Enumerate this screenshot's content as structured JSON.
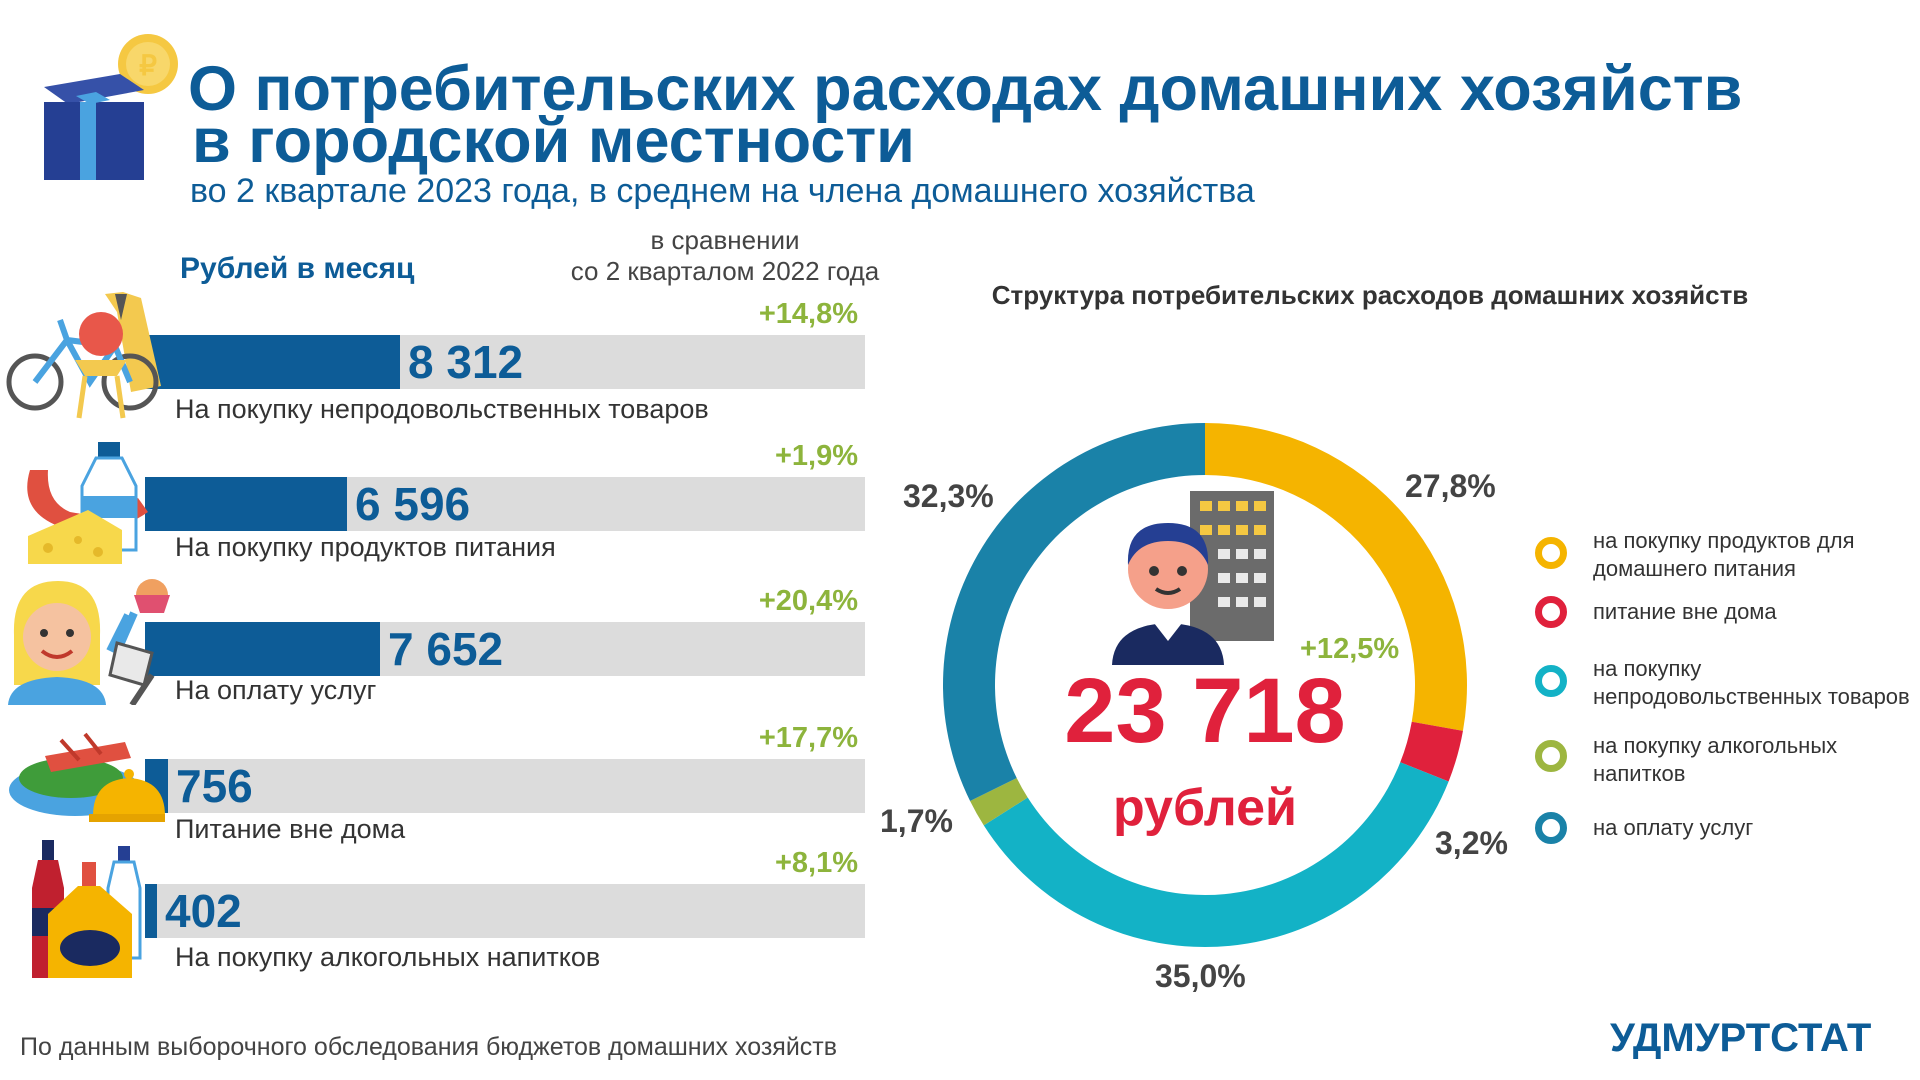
{
  "header": {
    "title_line1": "О потребительских расходах домашних хозяйств",
    "title_line2": "в городской местности",
    "subtitle": "во 2 квартале 2023 года, в среднем на члена домашнего хозяйства",
    "unit_label": "Рублей в месяц",
    "comparison_label_line1": "в сравнении",
    "comparison_label_line2": "со 2 кварталом 2022 года"
  },
  "chart_data": [
    {
      "type": "bar",
      "orientation": "horizontal",
      "categories": [
        "На покупку непродовольственных товаров",
        "На покупку продуктов питания",
        "На оплату услуг",
        "Питание вне дома",
        "На покупку алкогольных напитков"
      ],
      "values": [
        8312,
        6596,
        7652,
        756,
        402
      ],
      "value_labels": [
        "8 312",
        "6 596",
        "7 652",
        "756",
        "402"
      ],
      "changes": [
        "+14,8%",
        "+1,9%",
        "+20,4%",
        "+17,7%",
        "+8,1%"
      ],
      "icons": [
        "bicycle-chair-coat-icon",
        "milk-sausage-cheese-icon",
        "woman-service-icon",
        "restaurant-dish-icon",
        "bottles-icon"
      ],
      "bar_color": "#0d5c97",
      "track_color": "#dcdcdc",
      "change_color": "#8db43c"
    },
    {
      "type": "pie",
      "variant": "donut",
      "title": "Структура потребительских расходов домашних хозяйств",
      "total_value": "23 718",
      "total_unit": "рублей",
      "total_change": "+12,5%",
      "slices": [
        {
          "name": "на покупку продуктов для домашнего питания",
          "value": 27.8,
          "label": "27,8%",
          "color": "#f5b400"
        },
        {
          "name": "питание вне дома",
          "value": 3.2,
          "label": "3,2%",
          "color": "#e0213c"
        },
        {
          "name": "на покупку непродовольственных товаров",
          "value": 35.0,
          "label": "35,0%",
          "color": "#13b2c6"
        },
        {
          "name": "на покупку алкогольных напитков",
          "value": 1.7,
          "label": "1,7%",
          "color": "#9db640"
        },
        {
          "name": "на оплату услуг",
          "value": 32.3,
          "label": "32,3%",
          "color": "#1a82a8"
        }
      ],
      "legend": [
        "на покупку продуктов для домашнего питания",
        "питание вне дома",
        "на покупку непродовольственных товаров",
        "на покупку алкогольных напитков",
        "на оплату услуг"
      ],
      "legend_position": "right"
    }
  ],
  "footer": {
    "source": "По данным выборочного обследования бюджетов домашних хозяйств",
    "brand": "УДМУРТСТАТ"
  },
  "icons": {
    "header": "gift-box-coin-icon",
    "center": "person-building-icon"
  }
}
